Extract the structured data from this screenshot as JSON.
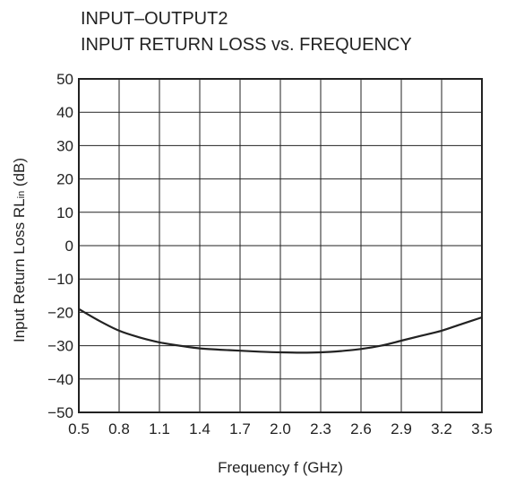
{
  "chart_data": {
    "type": "line",
    "title_line1": "INPUT–OUTPUT2",
    "title_line2": "INPUT RETURN LOSS vs. FREQUENCY",
    "xlabel": "Frequency  f (GHz)",
    "ylabel_main": "Input Return Loss  RL",
    "ylabel_sub": "in",
    "ylabel_unit": " (dB)",
    "xlim": [
      0.5,
      3.5
    ],
    "ylim": [
      -50,
      50
    ],
    "x_ticks": [
      "0.5",
      "0.8",
      "1.1",
      "1.4",
      "1.7",
      "2.0",
      "2.3",
      "2.6",
      "2.9",
      "3.2",
      "3.5"
    ],
    "y_ticks": [
      "50",
      "40",
      "30",
      "20",
      "10",
      "0",
      "−10",
      "−20",
      "−30",
      "−40",
      "−50"
    ],
    "grid": true,
    "series": [
      {
        "x": [
          0.5,
          0.65,
          0.8,
          0.95,
          1.1,
          1.25,
          1.4,
          1.55,
          1.7,
          1.85,
          2.0,
          2.15,
          2.3,
          2.45,
          2.6,
          2.75,
          2.9,
          3.05,
          3.2,
          3.35,
          3.5
        ],
        "y": [
          -19,
          -22.5,
          -25.5,
          -27.5,
          -29,
          -30,
          -30.8,
          -31.2,
          -31.5,
          -31.8,
          -32,
          -32.1,
          -32,
          -31.6,
          -31,
          -30,
          -28.5,
          -27,
          -25.5,
          -23.5,
          -21.5
        ]
      }
    ]
  }
}
